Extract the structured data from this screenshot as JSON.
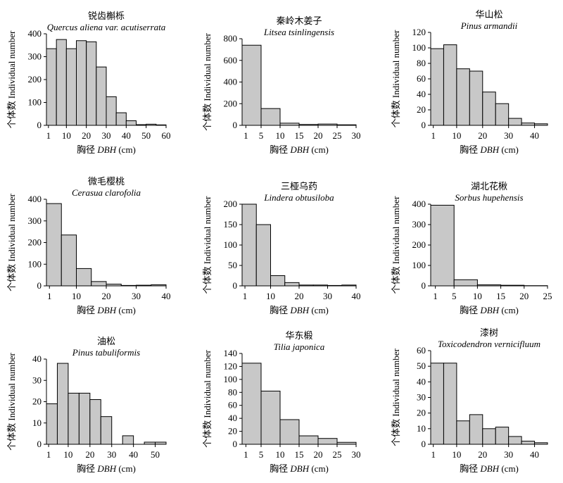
{
  "figure": {
    "xlabel_prefix": "胸径",
    "xlabel_var": "DBH",
    "xlabel_unit": "(cm)",
    "ylabel": "个体数 Individual number",
    "bar_color": "#c8c8c8"
  },
  "chart_data": [
    {
      "type": "bar",
      "title_cn": "锐齿槲栎",
      "title_latin": "Quercus aliena var. acutiserrata",
      "bin_edges": [
        0,
        5,
        10,
        15,
        20,
        25,
        30,
        35,
        40,
        45,
        50,
        55,
        60
      ],
      "values": [
        335,
        375,
        335,
        370,
        365,
        255,
        125,
        55,
        20,
        3,
        5,
        2
      ],
      "xticks": [
        1,
        10,
        20,
        30,
        40,
        50,
        60
      ],
      "xlim": [
        0,
        60
      ],
      "ylim": [
        0,
        400
      ],
      "yticks": [
        0,
        100,
        200,
        300,
        400
      ],
      "xlabel": "胸径 DBH (cm)",
      "ylabel": "个体数 Individual number"
    },
    {
      "type": "bar",
      "title_cn": "秦岭木姜子",
      "title_latin": "Litsea tsinlingensis",
      "bin_edges": [
        0,
        5,
        10,
        15,
        20,
        25,
        30
      ],
      "values": [
        740,
        155,
        20,
        8,
        12,
        5
      ],
      "xticks": [
        1,
        5,
        10,
        15,
        20,
        25,
        30
      ],
      "xlim": [
        0,
        30
      ],
      "ylim": [
        0,
        800
      ],
      "yticks": [
        0,
        200,
        400,
        600,
        800
      ],
      "xlabel": "胸径 DBH (cm)",
      "ylabel": "个体数 Individual number"
    },
    {
      "type": "bar",
      "title_cn": "华山松",
      "title_latin": "Pinus armandii",
      "bin_edges": [
        0,
        5,
        10,
        15,
        20,
        25,
        30,
        35,
        40,
        45
      ],
      "values": [
        99,
        104,
        73,
        70,
        43,
        28,
        9,
        3,
        2
      ],
      "xticks": [
        1,
        10,
        20,
        30,
        40
      ],
      "xlim": [
        0,
        45
      ],
      "ylim": [
        0,
        120
      ],
      "yticks": [
        0,
        20,
        40,
        60,
        80,
        100,
        120
      ],
      "xlabel": "胸径 DBH (cm)",
      "ylabel": "个体数 Individual number"
    },
    {
      "type": "bar",
      "title_cn": "微毛樱桃",
      "title_latin": "Cerasua clarofolia",
      "bin_edges": [
        0,
        5,
        10,
        15,
        20,
        25,
        30,
        35,
        40
      ],
      "values": [
        380,
        235,
        80,
        20,
        8,
        2,
        3,
        5
      ],
      "xticks": [
        1,
        10,
        20,
        30,
        40
      ],
      "xlim": [
        0,
        40
      ],
      "ylim": [
        0,
        400
      ],
      "yticks": [
        0,
        100,
        200,
        300,
        400
      ],
      "xlabel": "胸径 DBH (cm)",
      "ylabel": "个体数 Individual number"
    },
    {
      "type": "bar",
      "title_cn": "三桠乌药",
      "title_latin": "Lindera obtusiloba",
      "bin_edges": [
        0,
        5,
        10,
        15,
        20,
        25,
        30,
        35,
        40
      ],
      "values": [
        200,
        150,
        25,
        8,
        2,
        2,
        1,
        2
      ],
      "xticks": [
        1,
        10,
        20,
        30,
        40
      ],
      "xlim": [
        0,
        40
      ],
      "ylim": [
        0,
        200
      ],
      "yticks": [
        0,
        50,
        100,
        150,
        200
      ],
      "xlabel": "胸径 DBH (cm)",
      "ylabel": "个体数 Individual number"
    },
    {
      "type": "bar",
      "title_cn": "湖北花楸",
      "title_latin": "Sorbus hupehensis",
      "bin_edges": [
        0,
        5,
        10,
        15,
        20,
        25
      ],
      "values": [
        395,
        30,
        5,
        3,
        1
      ],
      "xticks": [
        1,
        5,
        10,
        15,
        20,
        25
      ],
      "xlim": [
        0,
        25
      ],
      "ylim": [
        0,
        400
      ],
      "yticks": [
        0,
        100,
        200,
        300,
        400
      ],
      "xlabel": "胸径 DBH (cm)",
      "ylabel": "个体数 Individual number"
    },
    {
      "type": "bar",
      "title_cn": "油松",
      "title_latin": "Pinus tabuliformis",
      "bin_edges": [
        0,
        5,
        10,
        15,
        20,
        25,
        30,
        35,
        40,
        45,
        50,
        55
      ],
      "values": [
        19,
        38,
        24,
        24,
        21,
        13,
        0,
        4,
        0,
        1,
        1
      ],
      "xticks": [
        1,
        10,
        20,
        30,
        40,
        50
      ],
      "xlim": [
        0,
        55
      ],
      "ylim": [
        0,
        40
      ],
      "yticks": [
        0,
        10,
        20,
        30,
        40
      ],
      "xlabel": "胸径 DBH (cm)",
      "ylabel": "个体数 Individual number"
    },
    {
      "type": "bar",
      "title_cn": "华东椴",
      "title_latin": "Tilia japonica",
      "bin_edges": [
        0,
        5,
        10,
        15,
        20,
        25,
        30
      ],
      "values": [
        125,
        82,
        38,
        13,
        9,
        3
      ],
      "xticks": [
        1,
        5,
        10,
        15,
        20,
        25,
        30
      ],
      "xlim": [
        0,
        30
      ],
      "ylim": [
        0,
        140
      ],
      "yticks": [
        0,
        20,
        40,
        60,
        80,
        100,
        120,
        140
      ],
      "xlabel": "胸径 DBH (cm)",
      "ylabel": "个体数 Individual number"
    },
    {
      "type": "bar",
      "title_cn": "漆树",
      "title_latin": "Toxicodendron vernicifluum",
      "bin_edges": [
        0,
        5,
        10,
        15,
        20,
        25,
        30,
        35,
        40,
        45
      ],
      "values": [
        52,
        52,
        15,
        19,
        10,
        11,
        5,
        2,
        1
      ],
      "xticks": [
        1,
        10,
        20,
        30,
        40
      ],
      "xlim": [
        0,
        45
      ],
      "ylim": [
        0,
        60
      ],
      "yticks": [
        0,
        10,
        20,
        30,
        40,
        50,
        60
      ],
      "xlabel": "胸径 DBH (cm)",
      "ylabel": "个体数 Individual number"
    }
  ]
}
